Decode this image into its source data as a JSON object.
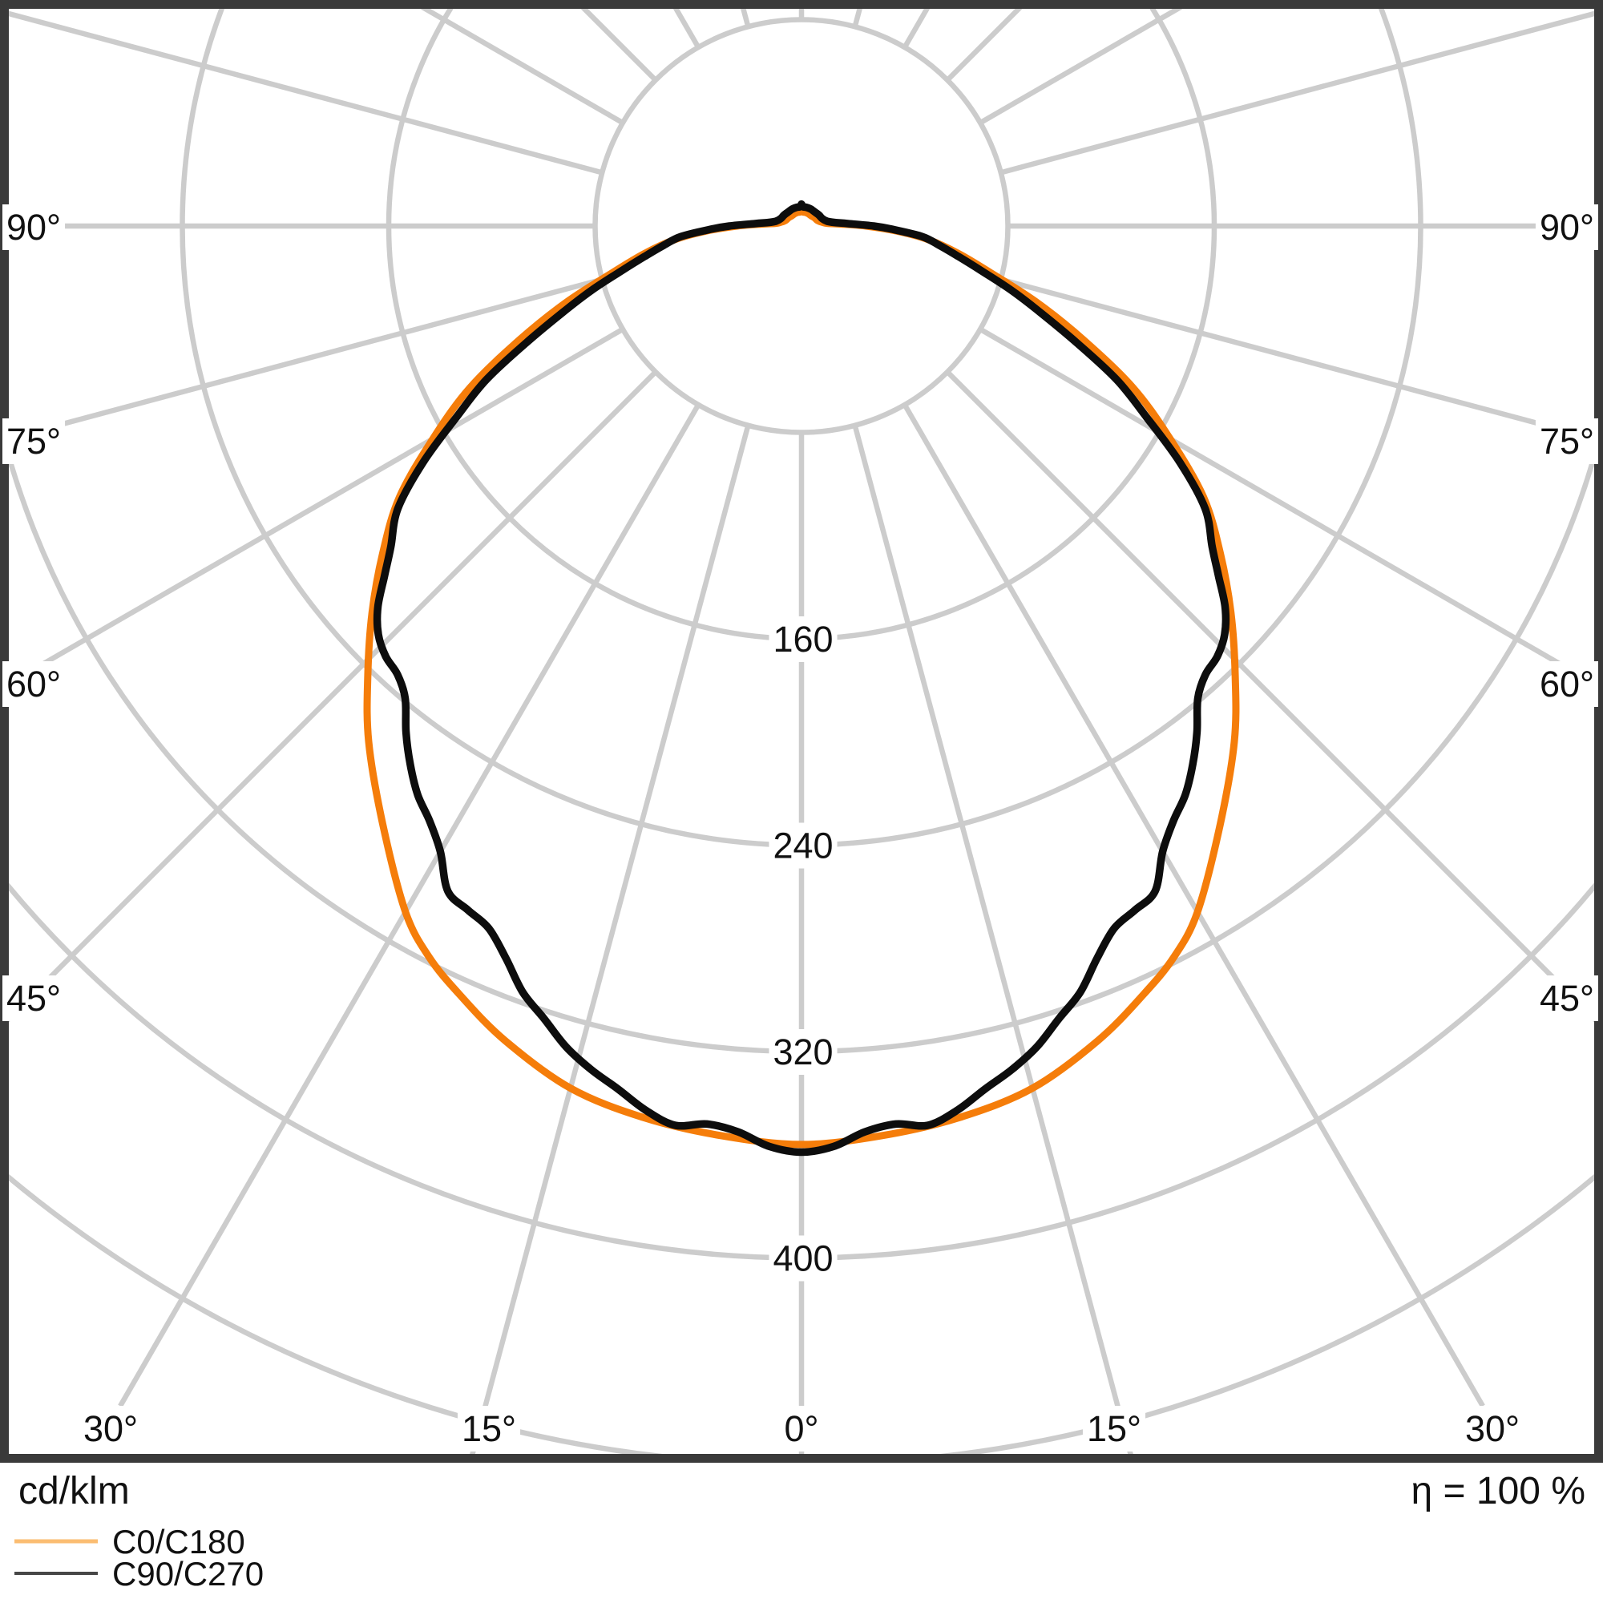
{
  "footer": {
    "quantity_label": "cd/klm",
    "efficiency_label": "η = 100 %"
  },
  "legend": [
    {
      "label": "C0/C180",
      "color": "#fbbd72"
    },
    {
      "label": "C90/C270",
      "color": "#474747"
    }
  ],
  "colors": {
    "grid": "#cccccc",
    "frame": "#3a3a3a",
    "c0_curve": "#f57d0a",
    "c90_curve": "#0d0d0d",
    "text": "#111111",
    "label_bg": "#ffffff"
  },
  "chart_data": {
    "type": "polar_intensity_distribution",
    "units": "cd/klm",
    "efficiency": "100 %",
    "angle_step_deg": 15,
    "angle_tick_labels_left": [
      "90°",
      "75°",
      "60°",
      "45°"
    ],
    "angle_tick_labels_right": [
      "90°",
      "75°",
      "60°",
      "45°"
    ],
    "angle_tick_labels_bottom": [
      "30°",
      "15°",
      "0°",
      "15°",
      "30°"
    ],
    "radial_ticks": [
      80,
      160,
      240,
      320,
      400,
      480
    ],
    "radial_tick_labels": [
      "160",
      "240",
      "320",
      "400"
    ],
    "series": [
      {
        "name": "C0/C180",
        "color": "#f57d0a",
        "symmetric": true,
        "points": [
          [
            0,
            356
          ],
          [
            5,
            354
          ],
          [
            10,
            351
          ],
          [
            15,
            346
          ],
          [
            20,
            336
          ],
          [
            24,
            326
          ],
          [
            27,
            318
          ],
          [
            30,
            307
          ],
          [
            35,
            283
          ],
          [
            40,
            261
          ],
          [
            44,
            242
          ],
          [
            48,
            224
          ],
          [
            52,
            206
          ],
          [
            56,
            188
          ],
          [
            60,
            165
          ],
          [
            64,
            143
          ],
          [
            68,
            118
          ],
          [
            72,
            96
          ],
          [
            76,
            76
          ],
          [
            80,
            62
          ],
          [
            84,
            49
          ],
          [
            87,
            37
          ],
          [
            90,
            25
          ],
          [
            93,
            15
          ],
          [
            96,
            10
          ],
          [
            101,
            8
          ],
          [
            110,
            6.5
          ],
          [
            122,
            6
          ],
          [
            136,
            5.5
          ],
          [
            152,
            5.5
          ],
          [
            166,
            5.5
          ],
          [
            175,
            5.5
          ],
          [
            180,
            6.5
          ]
        ]
      },
      {
        "name": "C90/C270",
        "color": "#0d0d0d",
        "symmetric": true,
        "points": [
          [
            0,
            359
          ],
          [
            2,
            357
          ],
          [
            4,
            352
          ],
          [
            6,
            350
          ],
          [
            8,
            352
          ],
          [
            10,
            348
          ],
          [
            12,
            342
          ],
          [
            14,
            337
          ],
          [
            16,
            331
          ],
          [
            18,
            323
          ],
          [
            20,
            316
          ],
          [
            22,
            306
          ],
          [
            24,
            298
          ],
          [
            26,
            295
          ],
          [
            28,
            292
          ],
          [
            30,
            280
          ],
          [
            32,
            272
          ],
          [
            34,
            266
          ],
          [
            36,
            258
          ],
          [
            38,
            249
          ],
          [
            40,
            239
          ],
          [
            42,
            234
          ],
          [
            44,
            232
          ],
          [
            46,
            228
          ],
          [
            48,
            221
          ],
          [
            50,
            211
          ],
          [
            52,
            202
          ],
          [
            55,
            191
          ],
          [
            58,
            173
          ],
          [
            61,
            153
          ],
          [
            64,
            136
          ],
          [
            67,
            116
          ],
          [
            70,
            99
          ],
          [
            73,
            85
          ],
          [
            76,
            72
          ],
          [
            79,
            62
          ],
          [
            82,
            54
          ],
          [
            85,
            47
          ],
          [
            88,
            35
          ],
          [
            90,
            28
          ],
          [
            93,
            18
          ],
          [
            96,
            13
          ],
          [
            101,
            10
          ],
          [
            110,
            8.5
          ],
          [
            122,
            8
          ],
          [
            136,
            7.5
          ],
          [
            152,
            7.5
          ],
          [
            166,
            7.5
          ],
          [
            175,
            7.5
          ],
          [
            180,
            8.5
          ]
        ]
      }
    ]
  }
}
